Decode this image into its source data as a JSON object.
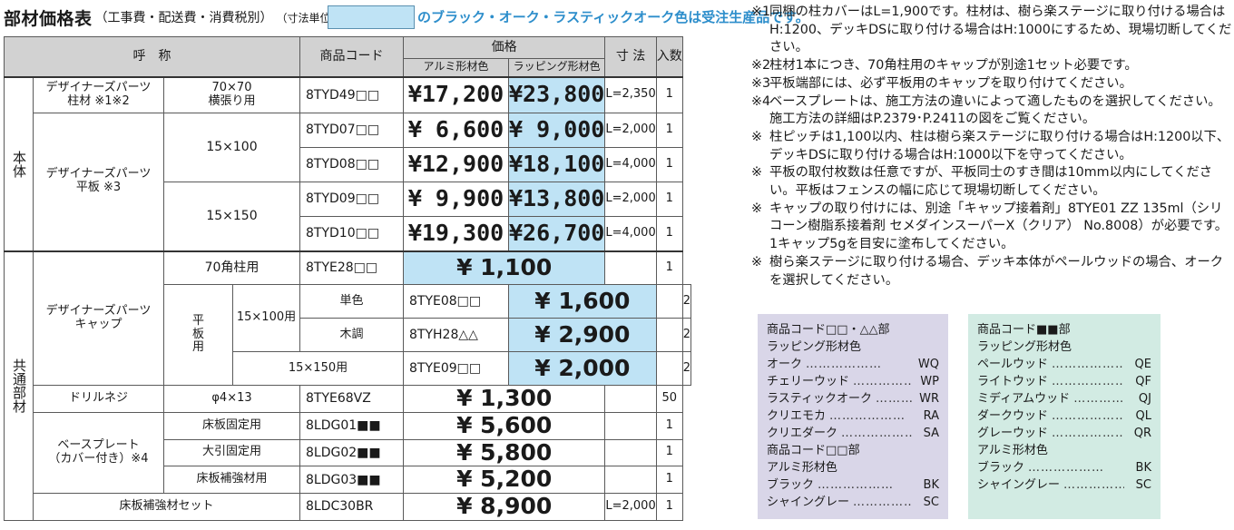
{
  "title": {
    "main": "部材価格表",
    "sub": "（工事費・配送費・消費税別）",
    "unit": "（寸法単位=mm）",
    "legend": "のブラック・オーク・ラスティックオーク色は受注生産品です。"
  },
  "table": {
    "headers": {
      "name": "呼　称",
      "code": "商品コード",
      "price": "価格",
      "price_alu": "アルミ形材色",
      "price_wrap": "ラッピング形材色",
      "dimension": "寸 法",
      "qty": "入数"
    },
    "groups": {
      "body": "本体",
      "common": "共通部材"
    },
    "body_rows": [
      {
        "name": "デザイナーズパーツ\n柱材 ※1※2",
        "spec": "70×70\n横張り用",
        "code": "8TYD49□□",
        "alu": "¥17,200",
        "wrap": "¥23,800",
        "dim": "L=2,350",
        "qty": "1"
      },
      {
        "name": "デザイナーズパーツ\n平板 ※3",
        "spec": "15×100",
        "code": "8TYD07□□",
        "alu": "¥ 6,600",
        "wrap": "¥ 9,000",
        "dim": "L=2,000",
        "qty": "1"
      },
      {
        "code": "8TYD08□□",
        "alu": "¥12,900",
        "wrap": "¥18,100",
        "dim": "L=4,000",
        "qty": "1"
      },
      {
        "spec": "15×150",
        "code": "8TYD09□□",
        "alu": "¥ 9,900",
        "wrap": "¥13,800",
        "dim": "L=2,000",
        "qty": "1"
      },
      {
        "code": "8TYD10□□",
        "alu": "¥19,300",
        "wrap": "¥26,700",
        "dim": "L=4,000",
        "qty": "1"
      }
    ],
    "common_rows": [
      {
        "name": "デザイナーズパーツ\nキャップ",
        "spec": "70角柱用",
        "code": "8TYE28□□",
        "price": "¥ 1,100",
        "qty": "1"
      },
      {
        "sub": "平\n板\n用",
        "spec": "15×100用",
        "color": "単色",
        "code": "8TYE08□□",
        "price": "¥ 1,600",
        "qty": "2"
      },
      {
        "color": "木調",
        "code": "8TYH28△△",
        "price": "¥ 2,900",
        "qty": "2"
      },
      {
        "spec": "15×150用",
        "code": "8TYE09□□",
        "price": "¥ 2,000",
        "qty": "2"
      },
      {
        "name": "ドリルネジ",
        "spec": "φ4×13",
        "code": "8TYE68VZ",
        "price": "¥ 1,300",
        "qty": "50"
      },
      {
        "name": "ベースプレート\n（カバー付き）※4",
        "spec": "床板固定用",
        "code": "8LDG01■■",
        "price": "¥ 5,600",
        "qty": "1"
      },
      {
        "spec": "大引固定用",
        "code": "8LDG02■■",
        "price": "¥ 5,800",
        "qty": "1"
      },
      {
        "spec": "床板補強材用",
        "code": "8LDG03■■",
        "price": "¥ 5,200",
        "qty": "1"
      },
      {
        "name": "床板補強材セット",
        "code": "8LDC30BR",
        "price": "¥ 8,900",
        "dim": "L=2,000",
        "qty": "1"
      }
    ]
  },
  "notes": [
    {
      "mark": "※1",
      "text": "同梱の柱カバーはL=1,900です。柱材は、樹ら楽ステージに取り付ける場合はH:1200、デッキDSに取り付ける場合はH:1000にするため、現場切断してください。"
    },
    {
      "mark": "※2",
      "text": "柱材1本につき、70角柱用のキャップが別途1セット必要です。"
    },
    {
      "mark": "※3",
      "text": "平板端部には、必ず平板用のキャップを取り付けてください。"
    },
    {
      "mark": "※4",
      "text": "ベースプレートは、施工方法の違いによって適したものを選択してください。施工方法の詳細はP.2379･P.2411の図をご覧ください。"
    },
    {
      "mark": "※",
      "text": "柱ピッチは1,100以内、柱は樹ら楽ステージに取り付ける場合はH:1200以下、デッキDSに取り付ける場合はH:1000以下を守ってください。"
    },
    {
      "mark": "※",
      "text": "平板の取付枚数は任意ですが、平板同士のすき間は10mm以内にしてください。平板はフェンスの幅に応じて現場切断してください。"
    },
    {
      "mark": "※",
      "text": "キャップの取り付けには、別途「キャップ接着剤」8TYE01 ZZ 135ml（シリコーン樹脂系接着剤 セメダインスーパーX（クリア） No.8008）が必要です。1キャップ5gを目安に塗布してください。"
    },
    {
      "mark": "※",
      "text": "樹ら楽ステージに取り付ける場合、デッキ本体がペールウッドの場合、オークを選択してください。"
    }
  ],
  "code_box_left": {
    "sections": [
      {
        "heading": "商品コード□□・△△部",
        "group": "ラッピング形材色",
        "items": [
          {
            "name": "オーク",
            "code": "WQ"
          },
          {
            "name": "チェリーウッド",
            "code": "WP"
          },
          {
            "name": "ラスティックオーク",
            "code": "WR"
          },
          {
            "name": "クリエモカ",
            "code": "RA"
          },
          {
            "name": "クリエダーク",
            "code": "SA"
          }
        ]
      },
      {
        "heading": "商品コード□□部",
        "group": "アルミ形材色",
        "items": [
          {
            "name": "ブラック",
            "code": "BK"
          },
          {
            "name": "シャイングレー",
            "code": "SC"
          }
        ]
      }
    ]
  },
  "code_box_right": {
    "sections": [
      {
        "heading": "商品コード■■部",
        "group": "ラッピング形材色",
        "items": [
          {
            "name": "ペールウッド",
            "code": "QE"
          },
          {
            "name": "ライトウッド",
            "code": "QF"
          },
          {
            "name": "ミディアムウッド",
            "code": "QJ"
          },
          {
            "name": "ダークウッド",
            "code": "QL"
          },
          {
            "name": "グレーウッド",
            "code": "QR"
          }
        ]
      },
      {
        "group": "アルミ形材色",
        "items": [
          {
            "name": "ブラック",
            "code": "BK"
          },
          {
            "name": "シャイングレー",
            "code": "SC"
          }
        ]
      }
    ]
  },
  "dots": "………………",
  "colors": {
    "header_gray": "#d2d2d2",
    "price_blue": "#bfe3f5",
    "legend_text": "#2d8ecb",
    "box_left": "#d9d6e8",
    "box_right": "#d2ebe3"
  }
}
